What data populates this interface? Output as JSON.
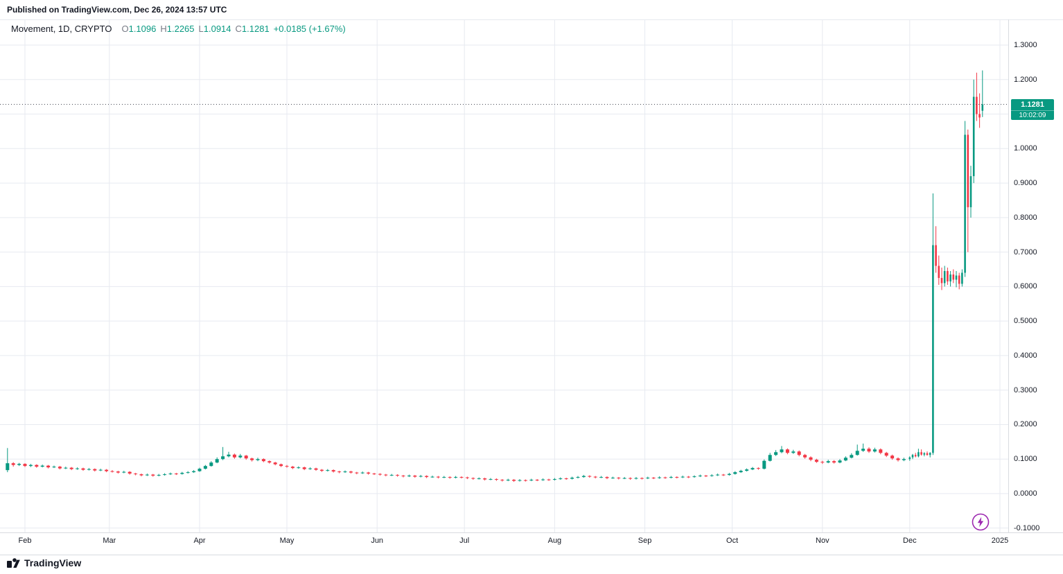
{
  "header": {
    "published_line": "Published on TradingView.com, Dec 26, 2024 13:57 UTC"
  },
  "legend": {
    "symbol_title": "Movement, 1D, CRYPTO",
    "items": [
      {
        "label": "O",
        "value": "1.1096"
      },
      {
        "label": "H",
        "value": "1.2265"
      },
      {
        "label": "L",
        "value": "1.0914"
      },
      {
        "label": "C",
        "value": "1.1281"
      }
    ],
    "change": "+0.0185 (+1.67%)"
  },
  "price_badge": {
    "price": "1.1281",
    "countdown": "10:02:09"
  },
  "price_axis": {
    "labels": [
      {
        "value": 1.3,
        "label": "1.3000"
      },
      {
        "value": 1.2,
        "label": "1.2000"
      },
      {
        "value": 1.0,
        "label": "1.0000"
      },
      {
        "value": 0.9,
        "label": "0.9000"
      },
      {
        "value": 0.8,
        "label": "0.8000"
      },
      {
        "value": 0.7,
        "label": "0.7000"
      },
      {
        "value": 0.6,
        "label": "0.6000"
      },
      {
        "value": 0.5,
        "label": "0.5000"
      },
      {
        "value": 0.4,
        "label": "0.4000"
      },
      {
        "value": 0.3,
        "label": "0.3000"
      },
      {
        "value": 0.2,
        "label": "0.2000"
      },
      {
        "value": 0.1,
        "label": "0.1000"
      },
      {
        "value": 0.0,
        "label": "0.0000"
      },
      {
        "value": -0.1,
        "label": "-0.1000"
      }
    ]
  },
  "time_axis": {
    "ticks": [
      {
        "label": "Feb",
        "day": 0
      },
      {
        "label": "Mar",
        "day": 29
      },
      {
        "label": "Apr",
        "day": 60
      },
      {
        "label": "May",
        "day": 90
      },
      {
        "label": "Jun",
        "day": 121
      },
      {
        "label": "Jul",
        "day": 151
      },
      {
        "label": "Aug",
        "day": 182
      },
      {
        "label": "Sep",
        "day": 213
      },
      {
        "label": "Oct",
        "day": 243
      },
      {
        "label": "Nov",
        "day": 274
      },
      {
        "label": "Dec",
        "day": 304
      },
      {
        "label": "2025",
        "day": 335
      }
    ]
  },
  "footer": {
    "brand": "TradingView"
  },
  "colors": {
    "up": "#089981",
    "down": "#f23645",
    "grid": "#e7eaf0",
    "price_line": "#434651",
    "badge_bg": "#089981",
    "text_primary": "#131722",
    "text_secondary": "#787b86",
    "stamp_purple": "#9c27b0"
  },
  "chart_data": {
    "type": "candlestick",
    "title": "Movement, 1D, CRYPTO",
    "symbol": "Movement",
    "interval": "1D",
    "exchange": "CRYPTO",
    "last_ohlc": {
      "open": 1.1096,
      "high": 1.2265,
      "low": 1.0914,
      "close": 1.1281
    },
    "change_abs": 0.0185,
    "change_pct": 1.67,
    "current_price": 1.1281,
    "ylim": [
      -0.11,
      1.37
    ],
    "grid_levels": [
      -0.1,
      0.0,
      0.1,
      0.2,
      0.3,
      0.4,
      0.5,
      0.6,
      0.7,
      0.8,
      0.9,
      1.0,
      1.1,
      1.2,
      1.3
    ],
    "x_unit": "days from Feb 1, 2024 (chart spans Feb 2024 - Dec 26, 2024)",
    "candles": [
      [
        -6,
        0.068,
        0.132,
        0.062,
        0.088
      ],
      [
        -4,
        0.088,
        0.091,
        0.078,
        0.083
      ],
      [
        -2,
        0.083,
        0.089,
        0.08,
        0.086
      ],
      [
        0,
        0.086,
        0.088,
        0.077,
        0.08
      ],
      [
        2,
        0.08,
        0.086,
        0.077,
        0.083
      ],
      [
        4,
        0.083,
        0.085,
        0.075,
        0.078
      ],
      [
        6,
        0.078,
        0.084,
        0.076,
        0.081
      ],
      [
        8,
        0.081,
        0.083,
        0.073,
        0.076
      ],
      [
        10,
        0.076,
        0.081,
        0.074,
        0.078
      ],
      [
        12,
        0.078,
        0.08,
        0.07,
        0.073
      ],
      [
        14,
        0.073,
        0.078,
        0.071,
        0.075
      ],
      [
        16,
        0.075,
        0.077,
        0.068,
        0.071
      ],
      [
        18,
        0.071,
        0.076,
        0.069,
        0.073
      ],
      [
        20,
        0.073,
        0.075,
        0.066,
        0.069
      ],
      [
        22,
        0.069,
        0.074,
        0.067,
        0.071
      ],
      [
        24,
        0.071,
        0.073,
        0.064,
        0.067
      ],
      [
        26,
        0.067,
        0.072,
        0.065,
        0.069
      ],
      [
        28,
        0.069,
        0.071,
        0.062,
        0.065
      ],
      [
        30,
        0.065,
        0.068,
        0.061,
        0.064
      ],
      [
        32,
        0.064,
        0.066,
        0.058,
        0.061
      ],
      [
        34,
        0.061,
        0.066,
        0.059,
        0.063
      ],
      [
        36,
        0.063,
        0.065,
        0.055,
        0.058
      ],
      [
        38,
        0.058,
        0.06,
        0.053,
        0.056
      ],
      [
        40,
        0.056,
        0.058,
        0.05,
        0.053
      ],
      [
        42,
        0.053,
        0.058,
        0.051,
        0.055
      ],
      [
        44,
        0.055,
        0.057,
        0.049,
        0.052
      ],
      [
        46,
        0.052,
        0.057,
        0.05,
        0.054
      ],
      [
        48,
        0.054,
        0.059,
        0.052,
        0.056
      ],
      [
        50,
        0.056,
        0.061,
        0.054,
        0.058
      ],
      [
        52,
        0.058,
        0.06,
        0.054,
        0.057
      ],
      [
        54,
        0.057,
        0.063,
        0.055,
        0.06
      ],
      [
        56,
        0.06,
        0.065,
        0.058,
        0.062
      ],
      [
        58,
        0.062,
        0.068,
        0.06,
        0.065
      ],
      [
        60,
        0.065,
        0.075,
        0.063,
        0.072
      ],
      [
        62,
        0.072,
        0.083,
        0.07,
        0.08
      ],
      [
        64,
        0.08,
        0.094,
        0.078,
        0.09
      ],
      [
        66,
        0.09,
        0.105,
        0.088,
        0.1
      ],
      [
        68,
        0.1,
        0.135,
        0.097,
        0.108
      ],
      [
        70,
        0.108,
        0.121,
        0.105,
        0.113
      ],
      [
        72,
        0.113,
        0.116,
        0.101,
        0.105
      ],
      [
        74,
        0.105,
        0.115,
        0.102,
        0.11
      ],
      [
        76,
        0.11,
        0.112,
        0.098,
        0.102
      ],
      [
        78,
        0.102,
        0.104,
        0.093,
        0.097
      ],
      [
        80,
        0.097,
        0.104,
        0.094,
        0.1
      ],
      [
        82,
        0.1,
        0.102,
        0.091,
        0.094
      ],
      [
        84,
        0.094,
        0.096,
        0.087,
        0.09
      ],
      [
        86,
        0.09,
        0.092,
        0.082,
        0.085
      ],
      [
        88,
        0.085,
        0.087,
        0.077,
        0.08
      ],
      [
        90,
        0.08,
        0.083,
        0.075,
        0.078
      ],
      [
        92,
        0.078,
        0.08,
        0.071,
        0.074
      ],
      [
        94,
        0.074,
        0.079,
        0.072,
        0.076
      ],
      [
        96,
        0.076,
        0.078,
        0.068,
        0.071
      ],
      [
        98,
        0.071,
        0.076,
        0.069,
        0.073
      ],
      [
        100,
        0.073,
        0.075,
        0.066,
        0.069
      ],
      [
        102,
        0.069,
        0.071,
        0.063,
        0.066
      ],
      [
        104,
        0.066,
        0.071,
        0.064,
        0.068
      ],
      [
        106,
        0.068,
        0.07,
        0.061,
        0.064
      ],
      [
        108,
        0.064,
        0.066,
        0.059,
        0.062
      ],
      [
        110,
        0.062,
        0.067,
        0.06,
        0.064
      ],
      [
        112,
        0.064,
        0.066,
        0.058,
        0.061
      ],
      [
        114,
        0.061,
        0.063,
        0.056,
        0.059
      ],
      [
        116,
        0.059,
        0.064,
        0.057,
        0.061
      ],
      [
        118,
        0.061,
        0.063,
        0.055,
        0.058
      ],
      [
        120,
        0.058,
        0.06,
        0.054,
        0.057
      ],
      [
        122,
        0.057,
        0.059,
        0.052,
        0.055
      ],
      [
        124,
        0.055,
        0.057,
        0.05,
        0.053
      ],
      [
        126,
        0.053,
        0.057,
        0.051,
        0.054
      ],
      [
        128,
        0.054,
        0.056,
        0.049,
        0.052
      ],
      [
        130,
        0.052,
        0.054,
        0.047,
        0.05
      ],
      [
        132,
        0.05,
        0.055,
        0.048,
        0.052
      ],
      [
        134,
        0.052,
        0.054,
        0.046,
        0.049
      ],
      [
        136,
        0.049,
        0.054,
        0.047,
        0.051
      ],
      [
        138,
        0.051,
        0.053,
        0.045,
        0.048
      ],
      [
        140,
        0.048,
        0.052,
        0.046,
        0.049
      ],
      [
        142,
        0.049,
        0.051,
        0.044,
        0.047
      ],
      [
        144,
        0.047,
        0.051,
        0.045,
        0.048
      ],
      [
        146,
        0.048,
        0.05,
        0.043,
        0.046
      ],
      [
        148,
        0.046,
        0.051,
        0.044,
        0.048
      ],
      [
        150,
        0.048,
        0.05,
        0.044,
        0.047
      ],
      [
        152,
        0.047,
        0.049,
        0.042,
        0.045
      ],
      [
        154,
        0.045,
        0.047,
        0.04,
        0.043
      ],
      [
        156,
        0.043,
        0.047,
        0.041,
        0.044
      ],
      [
        158,
        0.044,
        0.046,
        0.038,
        0.041
      ],
      [
        160,
        0.041,
        0.045,
        0.039,
        0.042
      ],
      [
        162,
        0.042,
        0.044,
        0.037,
        0.04
      ],
      [
        164,
        0.04,
        0.042,
        0.035,
        0.038
      ],
      [
        166,
        0.038,
        0.043,
        0.036,
        0.04
      ],
      [
        168,
        0.04,
        0.042,
        0.034,
        0.037
      ],
      [
        170,
        0.037,
        0.042,
        0.035,
        0.039
      ],
      [
        172,
        0.039,
        0.041,
        0.035,
        0.038
      ],
      [
        174,
        0.038,
        0.043,
        0.036,
        0.04
      ],
      [
        176,
        0.04,
        0.042,
        0.036,
        0.039
      ],
      [
        178,
        0.039,
        0.044,
        0.037,
        0.041
      ],
      [
        180,
        0.041,
        0.043,
        0.037,
        0.04
      ],
      [
        182,
        0.04,
        0.045,
        0.038,
        0.042
      ],
      [
        184,
        0.042,
        0.047,
        0.04,
        0.044
      ],
      [
        186,
        0.044,
        0.046,
        0.04,
        0.043
      ],
      [
        188,
        0.043,
        0.049,
        0.041,
        0.046
      ],
      [
        190,
        0.046,
        0.051,
        0.044,
        0.048
      ],
      [
        192,
        0.048,
        0.054,
        0.046,
        0.051
      ],
      [
        194,
        0.051,
        0.053,
        0.046,
        0.049
      ],
      [
        196,
        0.049,
        0.051,
        0.044,
        0.047
      ],
      [
        198,
        0.047,
        0.051,
        0.045,
        0.048
      ],
      [
        200,
        0.048,
        0.05,
        0.042,
        0.045
      ],
      [
        202,
        0.045,
        0.049,
        0.043,
        0.046
      ],
      [
        204,
        0.046,
        0.048,
        0.041,
        0.044
      ],
      [
        206,
        0.044,
        0.048,
        0.042,
        0.045
      ],
      [
        208,
        0.045,
        0.047,
        0.04,
        0.043
      ],
      [
        210,
        0.043,
        0.048,
        0.041,
        0.045
      ],
      [
        212,
        0.045,
        0.047,
        0.041,
        0.044
      ],
      [
        214,
        0.044,
        0.049,
        0.042,
        0.046
      ],
      [
        216,
        0.046,
        0.048,
        0.042,
        0.045
      ],
      [
        218,
        0.045,
        0.05,
        0.043,
        0.047
      ],
      [
        220,
        0.047,
        0.049,
        0.043,
        0.046
      ],
      [
        222,
        0.046,
        0.051,
        0.044,
        0.048
      ],
      [
        224,
        0.048,
        0.05,
        0.044,
        0.047
      ],
      [
        226,
        0.047,
        0.052,
        0.045,
        0.049
      ],
      [
        228,
        0.049,
        0.051,
        0.045,
        0.048
      ],
      [
        230,
        0.048,
        0.053,
        0.046,
        0.05
      ],
      [
        232,
        0.05,
        0.055,
        0.048,
        0.052
      ],
      [
        234,
        0.052,
        0.054,
        0.048,
        0.051
      ],
      [
        236,
        0.051,
        0.056,
        0.049,
        0.053
      ],
      [
        238,
        0.053,
        0.058,
        0.051,
        0.055
      ],
      [
        240,
        0.055,
        0.057,
        0.051,
        0.054
      ],
      [
        242,
        0.054,
        0.06,
        0.052,
        0.057
      ],
      [
        244,
        0.057,
        0.065,
        0.055,
        0.062
      ],
      [
        246,
        0.062,
        0.069,
        0.06,
        0.066
      ],
      [
        248,
        0.066,
        0.073,
        0.064,
        0.07
      ],
      [
        250,
        0.07,
        0.077,
        0.068,
        0.074
      ],
      [
        252,
        0.074,
        0.076,
        0.069,
        0.072
      ],
      [
        254,
        0.072,
        0.099,
        0.07,
        0.095
      ],
      [
        256,
        0.095,
        0.118,
        0.093,
        0.112
      ],
      [
        258,
        0.112,
        0.126,
        0.109,
        0.12
      ],
      [
        260,
        0.12,
        0.138,
        0.117,
        0.128
      ],
      [
        262,
        0.128,
        0.131,
        0.114,
        0.118
      ],
      [
        264,
        0.118,
        0.127,
        0.115,
        0.122
      ],
      [
        266,
        0.122,
        0.125,
        0.108,
        0.112
      ],
      [
        268,
        0.112,
        0.115,
        0.101,
        0.105
      ],
      [
        270,
        0.105,
        0.108,
        0.094,
        0.098
      ],
      [
        272,
        0.098,
        0.101,
        0.089,
        0.092
      ],
      [
        274,
        0.092,
        0.095,
        0.086,
        0.09
      ],
      [
        276,
        0.09,
        0.098,
        0.088,
        0.094
      ],
      [
        278,
        0.094,
        0.097,
        0.087,
        0.09
      ],
      [
        280,
        0.09,
        0.1,
        0.088,
        0.096
      ],
      [
        282,
        0.096,
        0.108,
        0.094,
        0.104
      ],
      [
        284,
        0.104,
        0.117,
        0.102,
        0.112
      ],
      [
        286,
        0.112,
        0.142,
        0.11,
        0.124
      ],
      [
        288,
        0.124,
        0.145,
        0.121,
        0.13
      ],
      [
        290,
        0.13,
        0.134,
        0.118,
        0.122
      ],
      [
        292,
        0.122,
        0.133,
        0.119,
        0.128
      ],
      [
        294,
        0.128,
        0.131,
        0.114,
        0.118
      ],
      [
        296,
        0.118,
        0.121,
        0.106,
        0.11
      ],
      [
        298,
        0.11,
        0.113,
        0.098,
        0.102
      ],
      [
        300,
        0.102,
        0.105,
        0.093,
        0.097
      ],
      [
        302,
        0.097,
        0.104,
        0.094,
        0.1
      ],
      [
        304,
        0.1,
        0.108,
        0.095,
        0.105
      ],
      [
        305,
        0.105,
        0.115,
        0.1,
        0.112
      ],
      [
        306,
        0.112,
        0.118,
        0.105,
        0.108
      ],
      [
        307,
        0.108,
        0.13,
        0.105,
        0.12
      ],
      [
        308,
        0.12,
        0.128,
        0.11,
        0.113
      ],
      [
        309,
        0.113,
        0.12,
        0.108,
        0.117
      ],
      [
        310,
        0.117,
        0.122,
        0.11,
        0.112
      ],
      [
        311,
        0.112,
        0.12,
        0.105,
        0.118
      ],
      [
        312,
        0.118,
        0.87,
        0.112,
        0.72
      ],
      [
        313,
        0.72,
        0.775,
        0.64,
        0.66
      ],
      [
        314,
        0.66,
        0.69,
        0.605,
        0.625
      ],
      [
        315,
        0.625,
        0.655,
        0.59,
        0.61
      ],
      [
        316,
        0.61,
        0.66,
        0.6,
        0.645
      ],
      [
        317,
        0.645,
        0.655,
        0.605,
        0.615
      ],
      [
        318,
        0.615,
        0.645,
        0.6,
        0.635
      ],
      [
        319,
        0.635,
        0.65,
        0.61,
        0.62
      ],
      [
        320,
        0.62,
        0.645,
        0.598,
        0.632
      ],
      [
        321,
        0.632,
        0.64,
        0.592,
        0.608
      ],
      [
        322,
        0.608,
        0.65,
        0.6,
        0.64
      ],
      [
        323,
        0.64,
        1.08,
        0.628,
        1.04
      ],
      [
        324,
        1.04,
        1.055,
        0.7,
        0.83
      ],
      [
        325,
        0.83,
        0.95,
        0.8,
        0.92
      ],
      [
        326,
        0.92,
        1.2,
        0.9,
        1.15
      ],
      [
        327,
        1.15,
        1.22,
        1.08,
        1.1
      ],
      [
        328,
        1.1,
        1.16,
        1.06,
        1.09
      ],
      [
        329,
        1.1096,
        1.2265,
        1.0914,
        1.1281
      ]
    ]
  }
}
